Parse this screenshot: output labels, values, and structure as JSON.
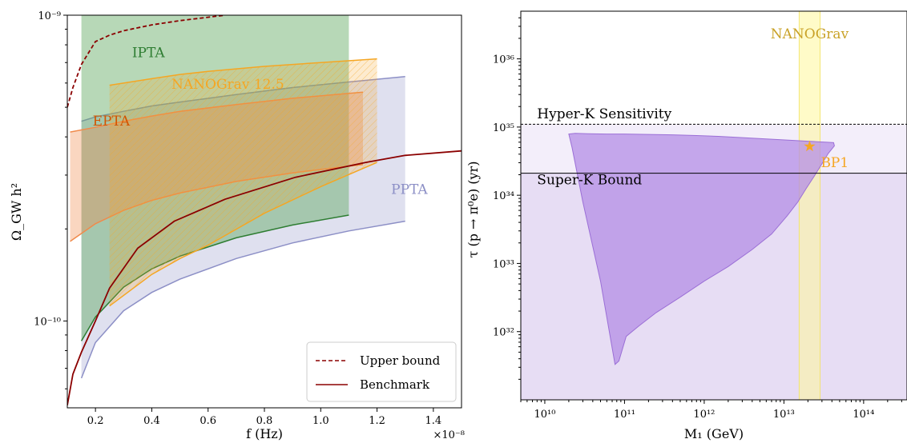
{
  "chart_data": [
    {
      "type": "area",
      "xlabel": "f (Hz)",
      "ylabel": "Ω_GW h²",
      "x_scale_label": "×10⁻⁸",
      "xlim": [
        0.1,
        1.5
      ],
      "ylim": [
        5.2e-11,
        1e-09
      ],
      "yscale": "log",
      "xticks": [
        0.2,
        0.4,
        0.6,
        0.8,
        1.0,
        1.2,
        1.4
      ],
      "xtick_labels": [
        "0.2",
        "0.4",
        "0.6",
        "0.8",
        "1.0",
        "1.2",
        "1.4"
      ],
      "yticks": [
        1e-10,
        1e-09
      ],
      "ytick_labels": [
        "10⁻¹⁰",
        "10⁻⁹"
      ],
      "grid": false,
      "legend_position": "bottom-right",
      "bands": [
        {
          "name": "PPTA",
          "color": "#8c8fc6",
          "opacity": 0.28,
          "hatch": false,
          "x": [
            0.15,
            0.2,
            0.3,
            0.4,
            0.5,
            0.7,
            0.9,
            1.1,
            1.3
          ],
          "lower": [
            6.5e-11,
            8.5e-11,
            1.08e-10,
            1.24e-10,
            1.37e-10,
            1.6e-10,
            1.8e-10,
            1.97e-10,
            2.12e-10
          ],
          "upper": [
            4.5e-10,
            4.65e-10,
            4.85e-10,
            5.05e-10,
            5.2e-10,
            5.5e-10,
            5.8e-10,
            6.05e-10,
            6.3e-10
          ]
        },
        {
          "name": "IPTA",
          "color": "#5fa85f",
          "opacity": 0.45,
          "hatch": false,
          "x": [
            0.15,
            0.2,
            0.3,
            0.4,
            0.5,
            0.7,
            0.9,
            1.1
          ],
          "lower": [
            8.6e-11,
            1.03e-10,
            1.29e-10,
            1.48e-10,
            1.63e-10,
            1.87e-10,
            2.06e-10,
            2.22e-10
          ],
          "upper": [
            1e-09,
            1e-09,
            1e-09,
            1e-09,
            1e-09,
            1e-09,
            1e-09,
            1e-09
          ]
        },
        {
          "name": "EPTA",
          "color": "#f08a4b",
          "opacity": 0.35,
          "hatch": false,
          "x": [
            0.11,
            0.2,
            0.3,
            0.4,
            0.5,
            0.7,
            0.9,
            1.15
          ],
          "lower": [
            1.82e-10,
            2.08e-10,
            2.3e-10,
            2.48e-10,
            2.62e-10,
            2.86e-10,
            3.05e-10,
            3.25e-10
          ],
          "upper": [
            4.15e-10,
            4.3e-10,
            4.5e-10,
            4.68e-10,
            4.85e-10,
            5.1e-10,
            5.35e-10,
            5.6e-10
          ]
        },
        {
          "name": "NANOGrav 12.5",
          "color": "#f5a623",
          "opacity": 0.22,
          "hatch": true,
          "x": [
            0.25,
            0.4,
            0.5,
            0.6,
            0.8,
            1.0,
            1.2
          ],
          "lower": [
            1.12e-10,
            1.42e-10,
            1.6e-10,
            1.77e-10,
            2.25e-10,
            2.75e-10,
            3.3e-10
          ],
          "upper": [
            5.9e-10,
            6.2e-10,
            6.4e-10,
            6.55e-10,
            6.8e-10,
            7e-10,
            7.2e-10
          ]
        }
      ],
      "band_labels": [
        {
          "text": "IPTA",
          "x": 0.33,
          "y": 7.3e-10,
          "color": "#2e7d32"
        },
        {
          "text": "NANOGrav 12.5",
          "x": 0.47,
          "y": 5.75e-10,
          "color": "#f5a623"
        },
        {
          "text": "EPTA",
          "x": 0.19,
          "y": 4.35e-10,
          "color": "#d35400"
        },
        {
          "text": "PPTA",
          "x": 1.25,
          "y": 2.6e-10,
          "color": "#8c8fc6"
        }
      ],
      "series": [
        {
          "name": "Upper bound",
          "color": "#8b0000",
          "dash": true,
          "x": [
            0.1,
            0.12,
            0.15,
            0.2,
            0.25,
            0.3,
            0.4,
            0.5,
            0.66
          ],
          "y": [
            5e-10,
            5.8e-10,
            6.9e-10,
            8.2e-10,
            8.6e-10,
            8.9e-10,
            9.3e-10,
            9.6e-10,
            1e-09
          ]
        },
        {
          "name": "Benchmark",
          "color": "#8b0000",
          "dash": false,
          "x": [
            0.1,
            0.12,
            0.15,
            0.2,
            0.25,
            0.35,
            0.48,
            0.66,
            0.91,
            1.16,
            1.3,
            1.5
          ],
          "y": [
            5.3e-11,
            6.7e-11,
            7.9e-11,
            1e-10,
            1.28e-10,
            1.73e-10,
            2.12e-10,
            2.5e-10,
            2.95e-10,
            3.3e-10,
            3.48e-10,
            3.6e-10
          ]
        }
      ],
      "legend": [
        "Upper bound",
        "Benchmark"
      ]
    },
    {
      "type": "area",
      "xlabel": "M₁ (GeV)",
      "ylabel": "τ (p → π⁰e) (yr)",
      "xscale": "log",
      "yscale": "log",
      "xlim": [
        5000000000.0,
        350000000000000.0
      ],
      "ylim": [
        1e+31,
        5e+36
      ],
      "xticks": [
        10000000000.0,
        100000000000.0,
        1000000000000.0,
        10000000000000.0,
        100000000000000.0
      ],
      "xtick_labels": [
        "10¹⁰",
        "10¹¹",
        "10¹²",
        "10¹³",
        "10¹⁴"
      ],
      "yticks": [
        1e+32,
        1e+33,
        1e+34,
        1e+35,
        1e+36
      ],
      "ytick_labels": [
        "10³²",
        "10³³",
        "10³⁴",
        "10³⁵",
        "10³⁶"
      ],
      "grid": false,
      "lines": [
        {
          "name": "Hyper-K Sensitivity",
          "y": 1.1e+35,
          "dash": true,
          "color": "#000000",
          "label_x": 8000000000.0,
          "label_y": 1.35e+35
        },
        {
          "name": "Super-K Bound",
          "y": 2.1e+34,
          "dash": false,
          "color": "#000000",
          "label_x": 8000000000.0,
          "label_y": 1.45e+34
        }
      ],
      "nanograv_band": {
        "label": "NANOGrav",
        "x": [
          15500000000000.0,
          28500000000000.0
        ],
        "color": "#fff79a",
        "label_color": "#c9a227"
      },
      "shading": [
        {
          "from": 1e+31,
          "to": 2.1e+34,
          "color": "#c9b3e6",
          "opacity": 0.45
        },
        {
          "from": 2.1e+34,
          "to": 1.1e+35,
          "color": "#e2d4f2",
          "opacity": 0.4
        }
      ],
      "region": {
        "color": "#b48ee6",
        "opacity": 0.75,
        "x": [
          20000000000.0,
          24000000000.0,
          35000000000.0,
          60000000000.0,
          100000000000.0,
          200000000000.0,
          400000000000.0,
          800000000000.0,
          1500000000000.0,
          3000000000000.0,
          6000000000000.0,
          12000000000000.0,
          20000000000000.0,
          26000000000000.0,
          33000000000000.0,
          42000000000000.0,
          43000000000000.0,
          36000000000000.0,
          30000000000000.0,
          24000000000000.0,
          19000000000000.0,
          15000000000000.0,
          11000000000000.0,
          7000000000000.0,
          4000000000000.0,
          2000000000000.0,
          1000000000000.0,
          500000000000.0,
          250000000000.0,
          150000000000.0,
          105000000000.0,
          85000000000.0,
          76000000000.0,
          50000000000.0,
          30000000000.0,
          22000000000.0
        ],
        "y": [
          7.9e+34,
          8.1e+34,
          8e+34,
          7.9e+34,
          7.9e+34,
          7.8e+34,
          7.7e+34,
          7.5e+34,
          7.3e+34,
          7e+34,
          6.7e+34,
          6.4e+34,
          6.2e+34,
          6.1e+34,
          6e+34,
          5.9e+34,
          5.3e+34,
          4.1e+34,
          2.9e+34,
          1.9e+34,
          1.25e+34,
          8e+33,
          5e+33,
          2.7e+33,
          1.6e+33,
          9e+32,
          5.5e+32,
          3.2e+32,
          1.9e+32,
          1.2e+32,
          8.5e+31,
          3.7e+31,
          3.3e+31,
          5.5e+32,
          8e+33,
          5e+34
        ]
      },
      "point": {
        "label": "BP1",
        "x": 21000000000000.0,
        "y": 5.2e+34,
        "marker": "star",
        "color": "#f5a623"
      }
    }
  ]
}
